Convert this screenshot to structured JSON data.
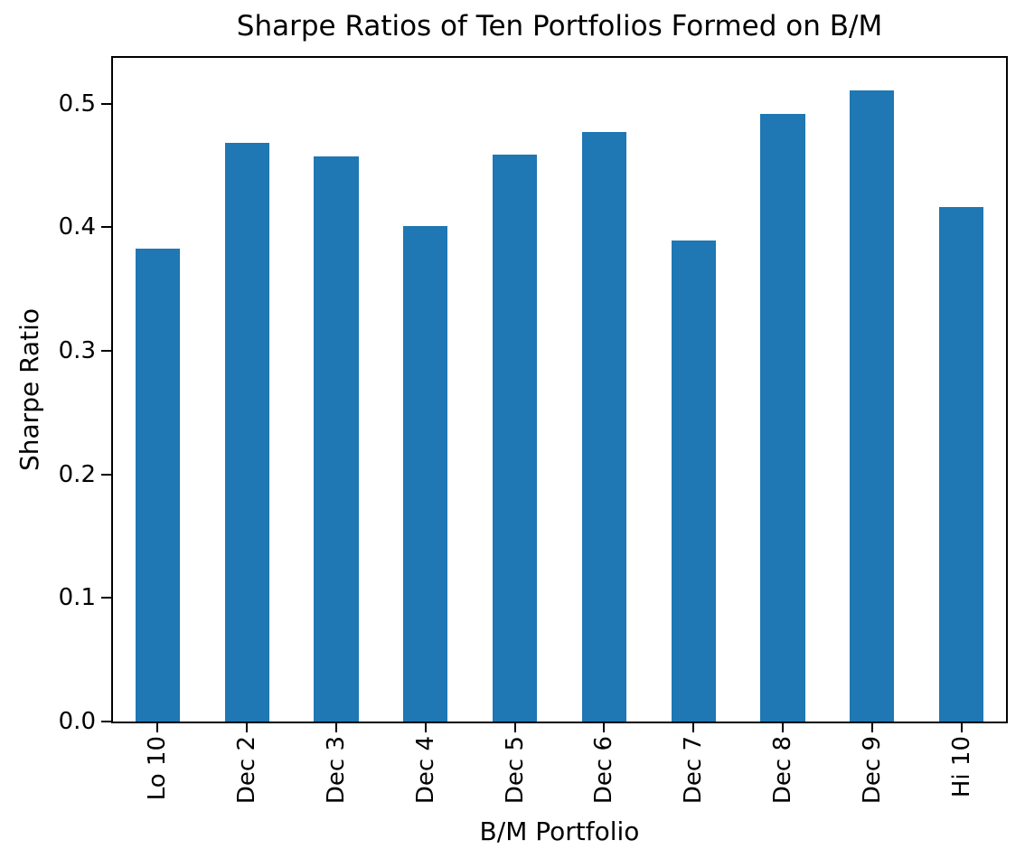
{
  "chart_data": {
    "type": "bar",
    "title": "Sharpe Ratios of Ten Portfolios Formed on B/M",
    "xlabel": "B/M Portfolio",
    "ylabel": "Sharpe Ratio",
    "categories": [
      "Lo 10",
      "Dec 2",
      "Dec 3",
      "Dec 4",
      "Dec 5",
      "Dec 6",
      "Dec 7",
      "Dec 8",
      "Dec 9",
      "Hi 10"
    ],
    "values": [
      0.383,
      0.468,
      0.457,
      0.401,
      0.459,
      0.477,
      0.389,
      0.492,
      0.511,
      0.416
    ],
    "ytick_labels": [
      "0.0",
      "0.1",
      "0.2",
      "0.3",
      "0.4",
      "0.5"
    ],
    "ylim": [
      0,
      0.537
    ],
    "bar_color": "#1f77b4",
    "bar_width_fraction": 0.5,
    "grid": false,
    "legend_visible": false,
    "xtick_rotation_deg": 90
  }
}
